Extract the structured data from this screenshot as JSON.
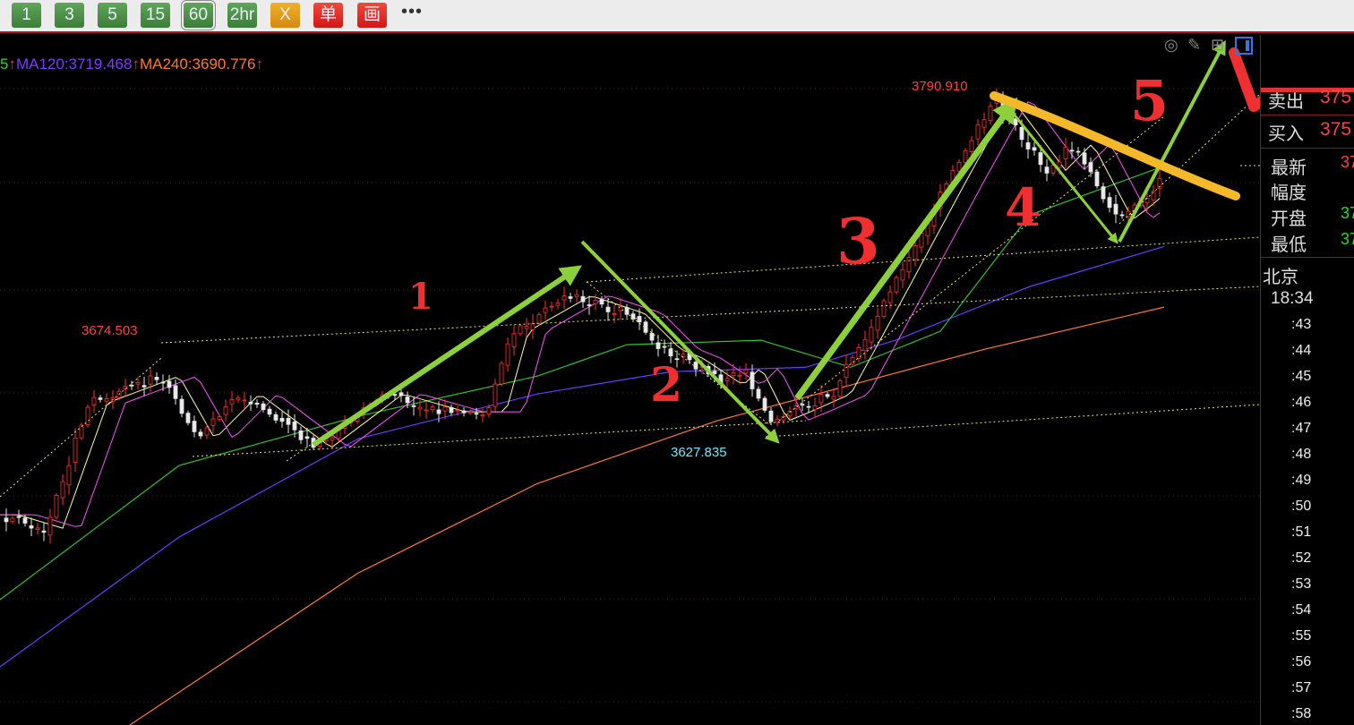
{
  "toolbar": {
    "buttons": [
      {
        "label": "1"
      },
      {
        "label": "3"
      },
      {
        "label": "5"
      },
      {
        "label": "15"
      },
      {
        "label": "60",
        "selected": true
      },
      {
        "label": "2hr"
      },
      {
        "label": "X"
      },
      {
        "label": "单"
      },
      {
        "label": "画"
      }
    ],
    "more": "•••"
  },
  "legend": {
    "items": [
      {
        "text": "5",
        "color": "#22dd22"
      },
      {
        "text": "↑",
        "color": "#ff3030"
      },
      {
        "text": "MA120:3719.468",
        "color": "#7b3cff"
      },
      {
        "text": "↑",
        "color": "#ff3030"
      },
      {
        "text": "MA240:3690.776",
        "color": "#ff7a20"
      },
      {
        "text": "↑",
        "color": "#ff3030"
      }
    ]
  },
  "chart_icons": [
    "eye-hide-icon",
    "pencil-icon",
    "grid-layout-icon",
    "panel-toggle-icon"
  ],
  "price_labels": {
    "high": "3790.910",
    "mid_high": "3674.503",
    "low": "3627.835"
  },
  "annotations": [
    "1",
    "2",
    "3",
    "4",
    "5"
  ],
  "panel": {
    "rows": [
      {
        "label": "卖出",
        "value": "375",
        "color": "#ff4040"
      },
      {
        "label": "买入",
        "value": "375",
        "color": "#ff4040"
      },
      {
        "label": "最新",
        "value": "37",
        "color": "#ff4040"
      },
      {
        "label": "幅度",
        "value": "",
        "color": "#ddd"
      },
      {
        "label": "开盘",
        "value": "37",
        "color": "#22dd22"
      },
      {
        "label": "最低",
        "value": "37",
        "color": "#22dd22"
      }
    ],
    "city": "北京",
    "time": "18:34",
    "minutes": [
      ":43",
      ":44",
      ":45",
      ":46",
      ":47",
      ":48",
      ":49",
      ":50",
      ":51",
      ":52",
      ":53",
      ":54",
      ":55",
      ":56",
      ":57",
      ":58"
    ]
  },
  "chart_data": {
    "type": "candlestick",
    "ylim": [
      3493,
      3818
    ],
    "price_path": [
      [
        0,
        3592.0
      ],
      [
        5,
        3585.7
      ],
      [
        10,
        3644.7
      ],
      [
        18,
        3657.3
      ],
      [
        22,
        3627.8
      ],
      [
        27,
        3648.9
      ],
      [
        35,
        3623.6
      ],
      [
        43,
        3648.9
      ],
      [
        50,
        3640.5
      ],
      [
        54.5,
        3640.5
      ],
      [
        57,
        3678.4
      ],
      [
        64,
        3695.2
      ],
      [
        70,
        3686.8
      ],
      [
        74,
        3670.0
      ],
      [
        76.5,
        3665.7
      ],
      [
        81,
        3653.1
      ],
      [
        83,
        3661.5
      ],
      [
        86,
        3636.2
      ],
      [
        88.5,
        3640.5
      ],
      [
        93,
        3648.9
      ],
      [
        99,
        3695.2
      ],
      [
        106,
        3750.0
      ],
      [
        111,
        3788.0
      ],
      [
        114,
        3771.1
      ],
      [
        117,
        3754.2
      ],
      [
        120,
        3766.9
      ],
      [
        124.5,
        3731.1
      ],
      [
        126.5,
        3737.4
      ],
      [
        130,
        3750.0
      ]
    ],
    "ma_lines": [
      {
        "name": "MA120",
        "color": "#6a3cff",
        "points": [
          [
            0,
            3520.4
          ],
          [
            20,
            3581.5
          ],
          [
            40,
            3627.8
          ],
          [
            60,
            3648.9
          ],
          [
            75,
            3659.4
          ],
          [
            90,
            3661.5
          ],
          [
            100,
            3674.2
          ],
          [
            115,
            3699.5
          ],
          [
            130,
            3718.4
          ]
        ]
      },
      {
        "name": "MA240",
        "color": "#ff7a30",
        "points": [
          [
            14.5,
            3493.0
          ],
          [
            40,
            3564.6
          ],
          [
            60,
            3606.7
          ],
          [
            80,
            3636.2
          ],
          [
            95,
            3653.1
          ],
          [
            110,
            3670.0
          ],
          [
            130,
            3689.8
          ]
        ]
      },
      {
        "color": "#30c030",
        "points": [
          [
            0,
            3552.0
          ],
          [
            20,
            3615.2
          ],
          [
            40,
            3638.4
          ],
          [
            60,
            3657.3
          ],
          [
            70,
            3672.1
          ],
          [
            85,
            3674.2
          ],
          [
            95,
            3661.5
          ],
          [
            105,
            3678.4
          ],
          [
            115,
            3733.2
          ],
          [
            130,
            3756.3
          ]
        ]
      }
    ],
    "marked_prices": {
      "high": 3790.91,
      "mid_high": 3674.503,
      "low": 3627.835
    },
    "up_color": "#ff3030",
    "down_color": "#e8e8e8"
  }
}
